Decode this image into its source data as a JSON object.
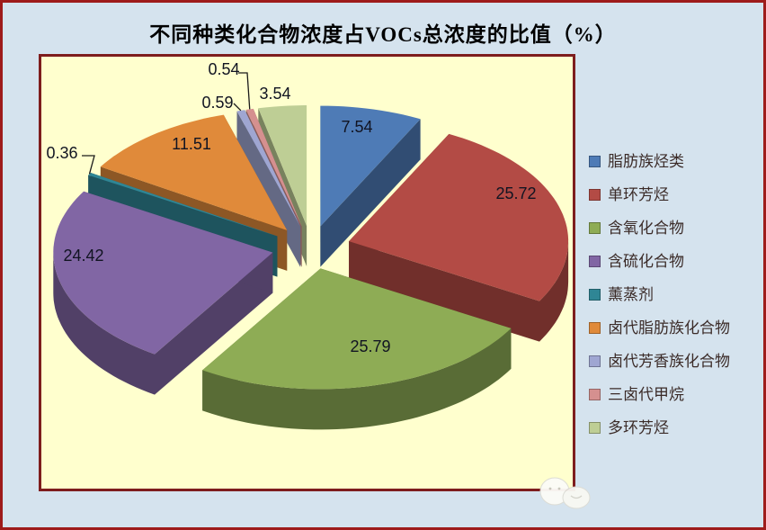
{
  "title": "不同种类化合物浓度占VOCs总浓度的比值（%）",
  "colors": {
    "page_bg": "#d5e3ee",
    "outer_border": "#9e1b1b",
    "plot_bg": "#ffffce",
    "plot_border": "#7e1d1d",
    "title_color": "#000000",
    "data_label_color": "#111422",
    "legend_text_color": "#3b2b28",
    "leader_line_color": "#1a1a1a"
  },
  "chart_data": {
    "type": "pie",
    "variant": "3d-exploded",
    "title": "不同种类化合物浓度占VOCs总浓度的比值（%）",
    "unit": "%",
    "start_angle": "top",
    "direction": "clockwise",
    "legend_position": "right",
    "series": [
      {
        "name": "脂肪族烃类",
        "value": 7.54,
        "label": "7.54",
        "color": "#4e7bb6",
        "label_placement": "inside"
      },
      {
        "name": "单环芳烃",
        "value": 25.72,
        "label": "25.72",
        "color": "#b34b45",
        "label_placement": "inside"
      },
      {
        "name": "含氧化合物",
        "value": 25.79,
        "label": "25.79",
        "color": "#8eac55",
        "label_placement": "inside"
      },
      {
        "name": "含硫化合物",
        "value": 24.42,
        "label": "24.42",
        "color": "#8166a4",
        "label_placement": "inside"
      },
      {
        "name": "薰蒸剂",
        "value": 0.36,
        "label": "0.36",
        "color": "#2f8695",
        "label_placement": "outside"
      },
      {
        "name": "卤代脂肪族化合物",
        "value": 11.51,
        "label": "11.51",
        "color": "#e08a3a",
        "label_placement": "inside"
      },
      {
        "name": "卤代芳香族化合物",
        "value": 0.59,
        "label": "0.59",
        "color": "#9fa6d2",
        "label_placement": "outside"
      },
      {
        "name": "三卤代甲烷",
        "value": 0.54,
        "label": "0.54",
        "color": "#d5908f",
        "label_placement": "outside"
      },
      {
        "name": "多环芳烃",
        "value": 3.54,
        "label": "3.54",
        "color": "#bece95",
        "label_placement": "outside"
      }
    ]
  }
}
